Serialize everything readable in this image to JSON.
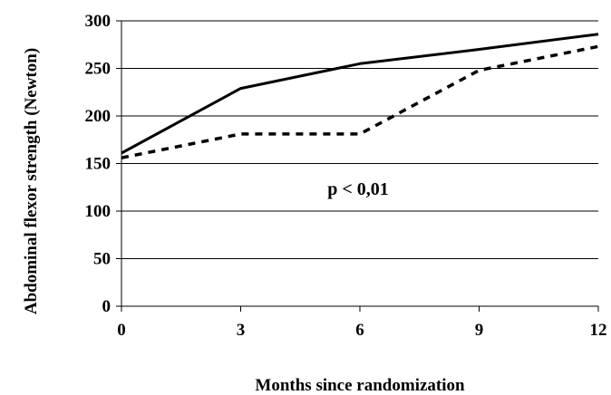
{
  "chart_data": {
    "type": "line",
    "title": "",
    "xlabel": "Months since randomization",
    "ylabel": "Abdominal flexor strength (Newton)",
    "annotation": "p < 0,01",
    "x_ticks": [
      "0",
      "3",
      "6",
      "9",
      "12"
    ],
    "y_ticks": [
      "0",
      "50",
      "100",
      "150",
      "200",
      "250",
      "300"
    ],
    "xlim": [
      0,
      12
    ],
    "ylim": [
      0,
      300
    ],
    "grid": "horizontal",
    "series": [
      {
        "style": "solid",
        "color": "#000000",
        "x": [
          0,
          3,
          6,
          9,
          12
        ],
        "y": [
          161,
          229,
          255,
          270,
          286
        ]
      },
      {
        "style": "dashed",
        "color": "#000000",
        "x": [
          0,
          3,
          6,
          9,
          12
        ],
        "y": [
          156,
          181,
          181,
          248,
          273
        ]
      }
    ]
  }
}
